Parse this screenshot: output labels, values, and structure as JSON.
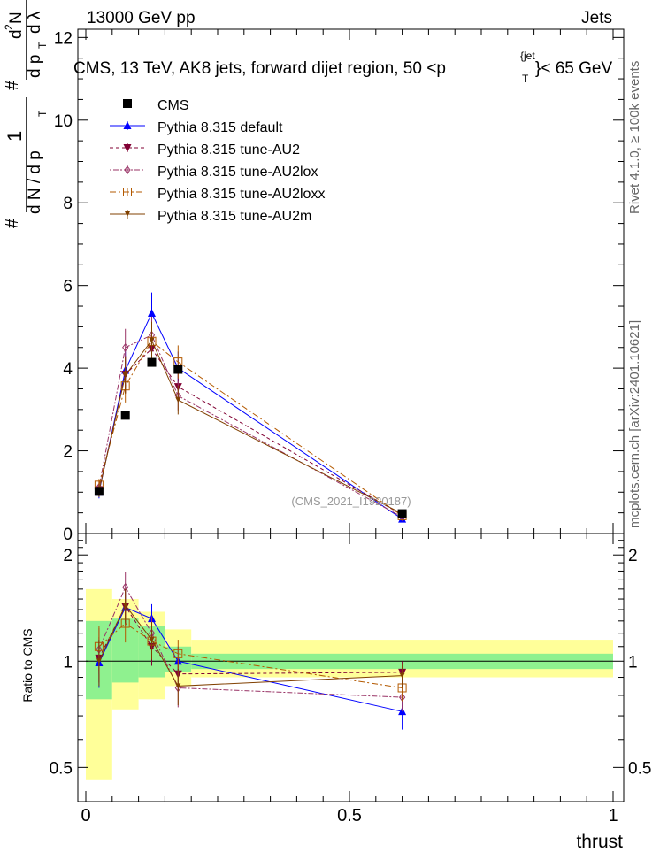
{
  "header": {
    "left": "13000 GeV pp",
    "right": "Jets"
  },
  "title": {
    "main": "CMS, 13 TeV, AK8 jets, forward dijet region, 50 <p",
    "sup": "{jet",
    "sub": "T",
    "tail": "}< 65 GeV"
  },
  "side_labels": {
    "rivet": "Rivet 4.1.0, ≥ 100k events",
    "mcplots": "mcplots.cern.ch [arXiv:2401.10621]"
  },
  "watermark": "(CMS_2021_I1920187)",
  "yaxis_main": {
    "label_parts": [
      "#",
      "1",
      "d N / d p",
      "T",
      "#",
      "d p",
      "T",
      "d",
      "2",
      "N",
      "d λ"
    ],
    "ticks": [
      "0",
      "2",
      "4",
      "6",
      "8",
      "10",
      "12"
    ]
  },
  "yaxis_ratio": {
    "label": "Ratio to CMS",
    "ticks": [
      "0.5",
      "1",
      "2"
    ]
  },
  "xaxis": {
    "label": "thrust",
    "ticks": [
      "0",
      "0.5",
      "1"
    ]
  },
  "colors": {
    "cms": "#000000",
    "default": "#0000ff",
    "au2": "#800033",
    "au2lox": "#993366",
    "au2loxx": "#b35900",
    "au2m": "#804000",
    "band_green": "#8ff18f",
    "band_yellow": "#ffff99"
  },
  "chart_data": {
    "type": "line",
    "title": "CMS, 13 TeV, AK8 jets, forward dijet region, 50 <p_T^{jet}< 65 GeV",
    "xlabel": "thrust",
    "ylabel": "(1/dN/dp_T) d2N/(dp_T dλ)",
    "xlim": [
      0,
      1
    ],
    "ylim": [
      0,
      12.2
    ],
    "ratio_ylim": [
      0.4,
      2.3
    ],
    "bins": [
      [
        0,
        0.05
      ],
      [
        0.05,
        0.1
      ],
      [
        0.1,
        0.15
      ],
      [
        0.15,
        0.2
      ],
      [
        0.2,
        1.0
      ]
    ],
    "x": [
      0.025,
      0.075,
      0.125,
      0.175,
      0.6
    ],
    "legend_position": "top-left",
    "data": {
      "name": "CMS",
      "values": [
        1.02,
        2.86,
        4.14,
        3.97,
        0.48
      ],
      "stat_band": [
        [
          0.78,
          1.3
        ],
        [
          0.87,
          1.32
        ],
        [
          0.9,
          1.26
        ],
        [
          0.93,
          1.1
        ],
        [
          0.95,
          1.05
        ]
      ],
      "total_band": [
        [
          0.46,
          1.6
        ],
        [
          0.73,
          1.5
        ],
        [
          0.78,
          1.38
        ],
        [
          0.85,
          1.23
        ],
        [
          0.9,
          1.15
        ]
      ]
    },
    "series": [
      {
        "name": "Pythia 8.315 default",
        "key": "default",
        "marker": "tri-up",
        "dash": "",
        "values": [
          1.0,
          3.95,
          5.33,
          4.0,
          0.35
        ],
        "errors": [
          0.15,
          0.45,
          0.5,
          0.4,
          0.05
        ],
        "ratio": [
          0.99,
          1.42,
          1.32,
          1.0,
          0.72
        ],
        "ratio_errors": [
          0.15,
          0.16,
          0.13,
          0.1,
          0.08
        ]
      },
      {
        "name": "Pythia 8.315 tune-AU2",
        "key": "au2",
        "marker": "tri-down",
        "dash": "4,3",
        "values": [
          1.06,
          3.85,
          4.47,
          3.55,
          0.45
        ],
        "errors": [
          0.15,
          0.45,
          0.4,
          0.35,
          0.05
        ],
        "ratio": [
          1.02,
          1.43,
          1.1,
          0.92,
          0.93
        ],
        "ratio_errors": [
          0.15,
          0.16,
          0.13,
          0.1,
          0.07
        ]
      },
      {
        "name": "Pythia 8.315 tune-AU2lox",
        "key": "au2lox",
        "marker": "diamond-open",
        "dash": "2,2,6,2",
        "values": [
          1.12,
          4.5,
          4.8,
          3.33,
          0.4
        ],
        "errors": [
          0.15,
          0.45,
          0.45,
          0.35,
          0.05
        ],
        "ratio": [
          1.08,
          1.62,
          1.2,
          0.84,
          0.79
        ],
        "ratio_errors": [
          0.16,
          0.17,
          0.14,
          0.1,
          0.07
        ]
      },
      {
        "name": "Pythia 8.315 tune-AU2loxx",
        "key": "au2loxx",
        "marker": "square-open",
        "dash": "7,3,2,3",
        "values": [
          1.17,
          3.57,
          4.65,
          4.15,
          0.43
        ],
        "errors": [
          0.15,
          0.4,
          0.45,
          0.4,
          0.05
        ],
        "ratio": [
          1.1,
          1.28,
          1.14,
          1.05,
          0.84
        ],
        "ratio_errors": [
          0.16,
          0.15,
          0.13,
          0.1,
          0.07
        ]
      },
      {
        "name": "Pythia 8.315 tune-AU2m",
        "key": "au2m",
        "marker": "tri-down-small",
        "dash": "",
        "values": [
          1.03,
          3.83,
          4.67,
          3.23,
          0.48
        ],
        "errors": [
          0.15,
          0.45,
          0.45,
          0.35,
          0.05
        ],
        "ratio": [
          1.0,
          1.44,
          1.15,
          0.85,
          0.91
        ],
        "ratio_errors": [
          0.15,
          0.16,
          0.14,
          0.1,
          0.07
        ]
      }
    ]
  }
}
